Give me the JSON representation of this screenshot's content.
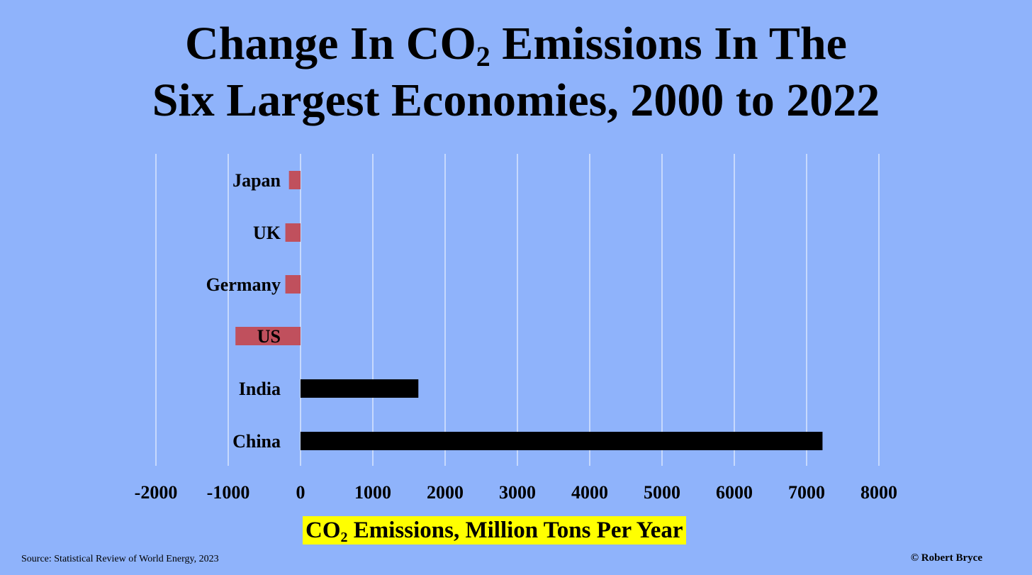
{
  "title": {
    "line1_pre": "Change In CO",
    "line1_sub": "2",
    "line1_post": " Emissions In The",
    "line2": "Six Largest Economies, 2000 to 2022"
  },
  "xlabel": {
    "pre": "CO",
    "sub": "2",
    "post": " Emissions, Million Tons Per Year"
  },
  "source": "Source: Statistical Review of World Energy, 2023",
  "credit": "© Robert Bryce",
  "colors": {
    "background": "#8fb3fb",
    "negative_bar": "#c0505d",
    "positive_bar": "#000000",
    "xlabel_highlight": "#ffff00",
    "gridline": "#ffffff"
  },
  "chart_data": {
    "type": "bar",
    "orientation": "horizontal",
    "categories": [
      "Japan",
      "UK",
      "Germany",
      "US",
      "India",
      "China"
    ],
    "values": [
      -160,
      -210,
      -210,
      -900,
      1630,
      7220
    ],
    "xlim": [
      -2000,
      8000
    ],
    "xticks": [
      -2000,
      -1000,
      0,
      1000,
      2000,
      3000,
      4000,
      5000,
      6000,
      7000,
      8000
    ],
    "grid": true,
    "legend": "none"
  }
}
